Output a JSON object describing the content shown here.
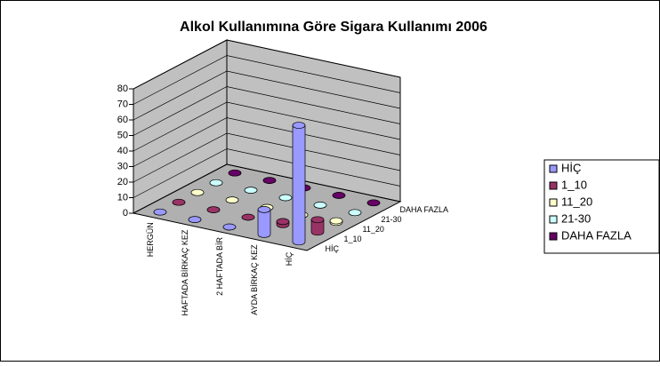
{
  "chart_data": {
    "type": "bar3d",
    "title": "Alkol Kullanımına Göre Sigara Kullanımı 2006",
    "categories": [
      "HERGÜN",
      "HAFTADA BİRKAÇ KEZ",
      "2 HAFTADA BİR",
      "AYDA BİRKAÇ KEZ",
      "HİÇ"
    ],
    "series": [
      {
        "name": "HİÇ",
        "color": "#9999ff",
        "values": [
          0,
          0,
          0,
          16,
          75
        ]
      },
      {
        "name": "1_10",
        "color": "#993366",
        "values": [
          0,
          0,
          0,
          2,
          8
        ]
      },
      {
        "name": "11_20",
        "color": "#ffffcc",
        "values": [
          0,
          0,
          0,
          0,
          1
        ]
      },
      {
        "name": "21-30",
        "color": "#ccffff",
        "values": [
          0,
          0,
          0,
          0,
          0
        ]
      },
      {
        "name": "DAHA FAZLA",
        "color": "#660066",
        "values": [
          0,
          0,
          0,
          0,
          0
        ]
      }
    ],
    "ylim": [
      0,
      80
    ],
    "yticks": [
      0,
      10,
      20,
      30,
      40,
      50,
      60,
      70,
      80
    ],
    "grid": true,
    "legend": "right"
  }
}
